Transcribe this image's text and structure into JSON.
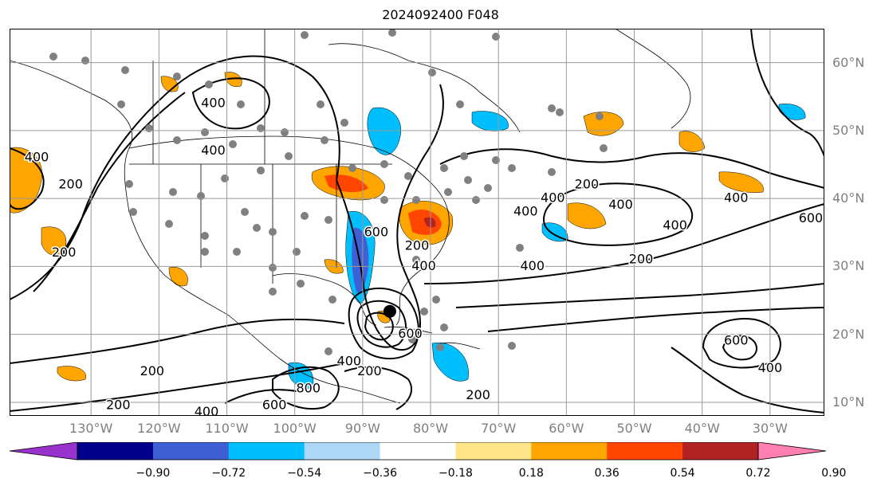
{
  "title": "2024092400 F048",
  "lon_ticks": [
    "130°W",
    "120°W",
    "110°W",
    "100°W",
    "90°W",
    "80°W",
    "70°W",
    "60°W",
    "50°W",
    "40°W",
    "30°W"
  ],
  "lat_ticks": [
    "60°N",
    "50°N",
    "40°N",
    "30°N",
    "20°N",
    "10°N"
  ],
  "map": {
    "lon_range": [
      -142,
      -22
    ],
    "lat_range": [
      8,
      65
    ],
    "grid": true,
    "storm_center": {
      "lon": -86.0,
      "lat": 23.4
    },
    "contour_levels": [
      200,
      400,
      600,
      800
    ],
    "contour_labels": [
      {
        "text": "200",
        "lon": -133,
        "lat": 42
      },
      {
        "text": "400",
        "lon": -138,
        "lat": 46
      },
      {
        "text": "200",
        "lon": -134,
        "lat": 32
      },
      {
        "text": "400",
        "lon": -112,
        "lat": 47
      },
      {
        "text": "400",
        "lon": -112,
        "lat": 54
      },
      {
        "text": "200",
        "lon": -82,
        "lat": 33
      },
      {
        "text": "400",
        "lon": -81,
        "lat": 30
      },
      {
        "text": "600",
        "lon": -88,
        "lat": 35
      },
      {
        "text": "200",
        "lon": -121,
        "lat": 14.5
      },
      {
        "text": "200",
        "lon": -126,
        "lat": 9.5
      },
      {
        "text": "400",
        "lon": -113,
        "lat": 8.5
      },
      {
        "text": "600",
        "lon": -103,
        "lat": 9.5
      },
      {
        "text": "800",
        "lon": -98,
        "lat": 12
      },
      {
        "text": "400",
        "lon": -92,
        "lat": 16
      },
      {
        "text": "200",
        "lon": -89,
        "lat": 14.5
      },
      {
        "text": "600",
        "lon": -83,
        "lat": 20
      },
      {
        "text": "200",
        "lon": -73,
        "lat": 11
      },
      {
        "text": "200",
        "lon": -57,
        "lat": 42
      },
      {
        "text": "400",
        "lon": -62,
        "lat": 40
      },
      {
        "text": "400",
        "lon": -66,
        "lat": 38
      },
      {
        "text": "400",
        "lon": -52,
        "lat": 39
      },
      {
        "text": "400",
        "lon": -44,
        "lat": 36
      },
      {
        "text": "400",
        "lon": -65,
        "lat": 30
      },
      {
        "text": "200",
        "lon": -49,
        "lat": 31
      },
      {
        "text": "400",
        "lon": -35,
        "lat": 40
      },
      {
        "text": "600",
        "lon": -24,
        "lat": 37
      },
      {
        "text": "600",
        "lon": -35,
        "lat": 19
      },
      {
        "text": "400",
        "lon": -30,
        "lat": 15
      }
    ]
  },
  "colorbar": {
    "labels": [
      "−0.90",
      "−0.72",
      "−0.54",
      "−0.36",
      "−0.18",
      "0.18",
      "0.36",
      "0.54",
      "0.72",
      "0.90"
    ],
    "colors": [
      "#9932cc",
      "#00008b",
      "#3f5fd4",
      "#00bfff",
      "#add8f5",
      "#ffffff",
      "#ffe58a",
      "#ffa500",
      "#ff4500",
      "#b22222",
      "#ff7fb0"
    ]
  }
}
